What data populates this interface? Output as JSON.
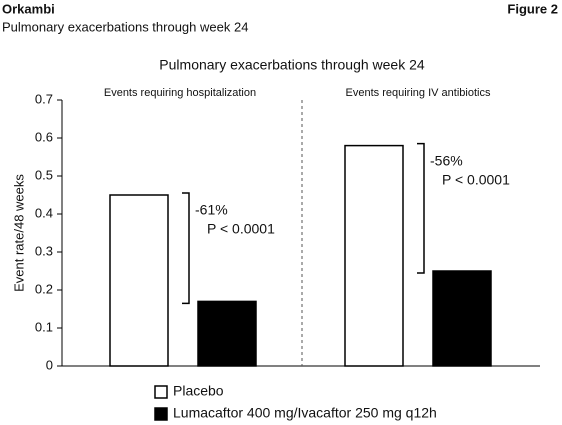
{
  "header": {
    "title": "Orkambi",
    "figure_label": "Figure 2",
    "subtitle": "Pulmonary exacerbations through week 24"
  },
  "chart_data": {
    "type": "bar",
    "title": "Pulmonary exacerbations through week 24",
    "ylabel": "Event rate/48 weeks",
    "categories": [
      "Events requiring hospitalization",
      "Events requiring IV antibiotics"
    ],
    "series": [
      {
        "name": "Placebo",
        "color": "#ffffff",
        "values": [
          0.45,
          0.58
        ]
      },
      {
        "name": "Lumacaftor 400 mg/Ivacaftor 250 mg q12h",
        "color": "#000000",
        "values": [
          0.17,
          0.25
        ]
      }
    ],
    "edgecolor": "#000000",
    "annotations": [
      {
        "change": "-61%",
        "p": "P < 0.0001"
      },
      {
        "change": "-56%",
        "p": "P < 0.0001"
      }
    ],
    "ylim": [
      0,
      0.7
    ],
    "yticks": [
      0,
      0.1,
      0.2,
      0.3,
      0.4,
      0.5,
      0.6,
      0.7
    ]
  }
}
